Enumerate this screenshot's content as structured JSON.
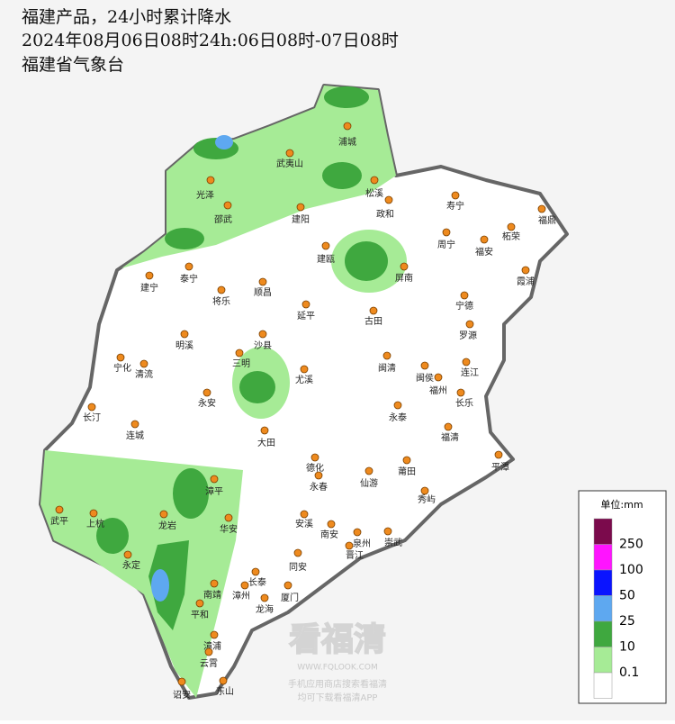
{
  "header": {
    "title": "福建产品，24小时累计降水",
    "subtitle": "2024年08月06日08时24h:06日08时-07日08时",
    "source": "福建省气象台"
  },
  "cities": [
    "浦城",
    "武夷山",
    "光泽",
    "松溪",
    "邵武",
    "政和",
    "建阳",
    "寿宁",
    "福鼎",
    "柘荣",
    "周宁",
    "福安",
    "建瓯",
    "霞浦",
    "泰宁",
    "建宁",
    "顺昌",
    "屏南",
    "将乐",
    "宁德",
    "延平",
    "古田",
    "罗源",
    "沙县",
    "明溪",
    "三明",
    "宁化",
    "清流",
    "闽清",
    "闽侯",
    "连江",
    "尤溪",
    "福州",
    "永安",
    "长乐",
    "长汀",
    "永泰",
    "连城",
    "福清",
    "大田",
    "平潭",
    "德化",
    "莆田",
    "永春",
    "仙游",
    "漳平",
    "秀屿",
    "武平",
    "上杭",
    "龙岩",
    "华安",
    "安溪",
    "南安",
    "泉州",
    "崇武",
    "晋江",
    "永定",
    "同安",
    "长泰",
    "漳州",
    "厦门",
    "南靖",
    "龙海",
    "平和",
    "漳浦",
    "云霄",
    "诏安",
    "东山"
  ],
  "legend": {
    "title": "单位:mm",
    "labels": [
      250,
      100,
      50,
      25,
      10,
      0.1
    ],
    "colors": [
      "#7b0a4c",
      "#ff14ff",
      "#0a14ff",
      "#5ea8f0",
      "#3fa83f",
      "#a6eb96",
      "#ffffff"
    ]
  },
  "watermark": {
    "name": "看福清",
    "url": "WWW.FQLOOK.COM",
    "line1": "手机应用商店搜索看福清",
    "line2": "均可下载看福清APP"
  }
}
